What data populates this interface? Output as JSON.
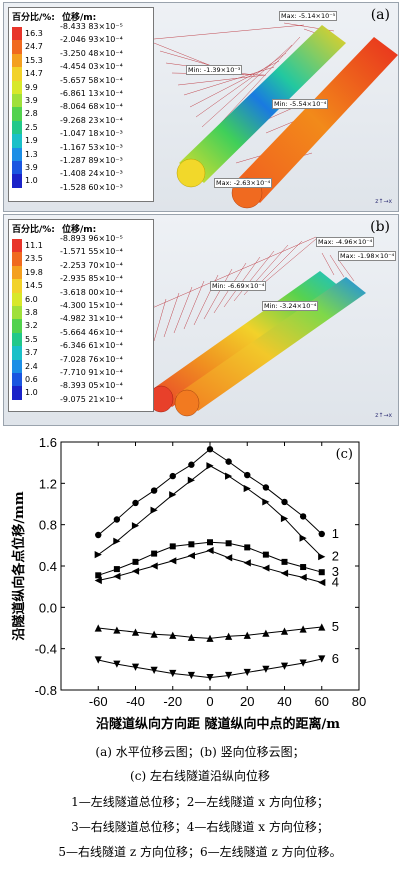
{
  "panel_a": {
    "label": "(a)",
    "legend_header_pct": "百分比/%:",
    "legend_header_disp": "位移/m:",
    "percents": [
      "16.3",
      "24.7",
      "15.3",
      "14.7",
      "9.9",
      "3.9",
      "2.8",
      "2.5",
      "1.9",
      "1.3",
      "3.9",
      "1.0"
    ],
    "displacements": [
      "-8.433 83×10⁻⁵",
      "-2.046 93×10⁻⁴",
      "-3.250 48×10⁻⁴",
      "-4.454 03×10⁻⁴",
      "-5.657 58×10⁻⁴",
      "-6.861 13×10⁻⁴",
      "-8.064 68×10⁻⁴",
      "-9.268 23×10⁻⁴",
      "-1.047 18×10⁻³",
      "-1.167 53×10⁻³",
      "-1.287 89×10⁻³",
      "-1.408 24×10⁻³",
      "-1.528 60×10⁻³"
    ],
    "colors": [
      "#e8352a",
      "#f06a20",
      "#f4a020",
      "#f2d22a",
      "#d8e82a",
      "#9fe03a",
      "#52d24e",
      "#22c88a",
      "#1ac0c8",
      "#1c8ee6",
      "#1a55e0",
      "#1a22c8"
    ],
    "tags": [
      "Max: -5.14×10⁻⁵",
      "Min: -1.39×10⁻³",
      "Min: -5.54×10⁻⁴",
      "Max: -2.63×10⁻⁴"
    ]
  },
  "panel_b": {
    "label": "(b)",
    "legend_header_pct": "百分比/%:",
    "legend_header_disp": "位移/m:",
    "percents": [
      "11.1",
      "23.5",
      "19.8",
      "14.5",
      "6.0",
      "3.8",
      "3.2",
      "5.5",
      "3.7",
      "2.4",
      "0.6",
      "1.0"
    ],
    "displacements": [
      "-8.893 96×10⁻⁵",
      "-1.571 55×10⁻⁴",
      "-2.253 70×10⁻⁴",
      "-2.935 85×10⁻⁴",
      "-3.618 00×10⁻⁴",
      "-4.300 15×10⁻⁴",
      "-4.982 31×10⁻⁴",
      "-5.664 46×10⁻⁴",
      "-6.346 61×10⁻⁴",
      "-7.028 76×10⁻⁴",
      "-7.710 91×10⁻⁴",
      "-8.393 05×10⁻⁴",
      "-9.075 21×10⁻⁴"
    ],
    "colors": [
      "#e8352a",
      "#f06a20",
      "#f4a020",
      "#f2d22a",
      "#d8e82a",
      "#9fe03a",
      "#52d24e",
      "#22c88a",
      "#1ac0c8",
      "#1c8ee6",
      "#1a55e0",
      "#1a22c8"
    ],
    "tags": [
      "Max: -4.96×10⁻⁴",
      "Max: -1.98×10⁻⁴",
      "Min: -6.69×10⁻⁴",
      "Min: -3.24×10⁻⁴"
    ]
  },
  "chart_data": {
    "type": "line",
    "label": "(c)",
    "xlabel": "沿隧道纵向方向距 隧道纵向中点的距离/m",
    "ylabel": "沿隧道纵向各点位移/mm",
    "x": [
      -60,
      -50,
      -40,
      -30,
      -20,
      -10,
      0,
      10,
      20,
      30,
      40,
      50,
      60
    ],
    "xlim": [
      -80,
      80
    ],
    "ylim": [
      -0.8,
      1.6
    ],
    "xticks": [
      -60,
      -40,
      -20,
      0,
      20,
      40,
      60,
      80
    ],
    "yticks": [
      -0.8,
      -0.4,
      0,
      0.4,
      0.8,
      1.2,
      1.6
    ],
    "series": [
      {
        "name": "1",
        "marker": "circle",
        "values": [
          0.7,
          0.85,
          1.01,
          1.13,
          1.27,
          1.38,
          1.53,
          1.41,
          1.28,
          1.16,
          1.02,
          0.88,
          0.71
        ]
      },
      {
        "name": "2",
        "marker": "triangle-right",
        "values": [
          0.51,
          0.64,
          0.79,
          0.94,
          1.09,
          1.23,
          1.37,
          1.27,
          1.15,
          1.02,
          0.86,
          0.67,
          0.49
        ]
      },
      {
        "name": "3",
        "marker": "square",
        "values": [
          0.31,
          0.37,
          0.44,
          0.52,
          0.59,
          0.61,
          0.63,
          0.62,
          0.58,
          0.51,
          0.44,
          0.39,
          0.34
        ]
      },
      {
        "name": "4",
        "marker": "triangle-left",
        "values": [
          0.26,
          0.3,
          0.35,
          0.4,
          0.45,
          0.5,
          0.55,
          0.48,
          0.43,
          0.38,
          0.33,
          0.29,
          0.24
        ]
      },
      {
        "name": "5",
        "marker": "triangle-up",
        "values": [
          -0.2,
          -0.22,
          -0.24,
          -0.26,
          -0.27,
          -0.29,
          -0.3,
          -0.28,
          -0.27,
          -0.25,
          -0.23,
          -0.21,
          -0.19
        ]
      },
      {
        "name": "6",
        "marker": "triangle-down",
        "values": [
          -0.51,
          -0.55,
          -0.58,
          -0.61,
          -0.64,
          -0.66,
          -0.68,
          -0.66,
          -0.63,
          -0.6,
          -0.57,
          -0.54,
          -0.5
        ]
      }
    ]
  },
  "caption": {
    "line1": "(a)  水平位移云图；(b)  竖向位移云图；",
    "line2": "(c)  左右线隧道沿纵向位移",
    "line3": "1—左线隧道总位移；2—左线隧道 x 方向位移；",
    "line4": "3—右线隧道总位移；4—右线隧道 x 方向位移；",
    "line5": "5—右线隧道 z 方向位移；6—左线隧道 z 方向位移。"
  }
}
